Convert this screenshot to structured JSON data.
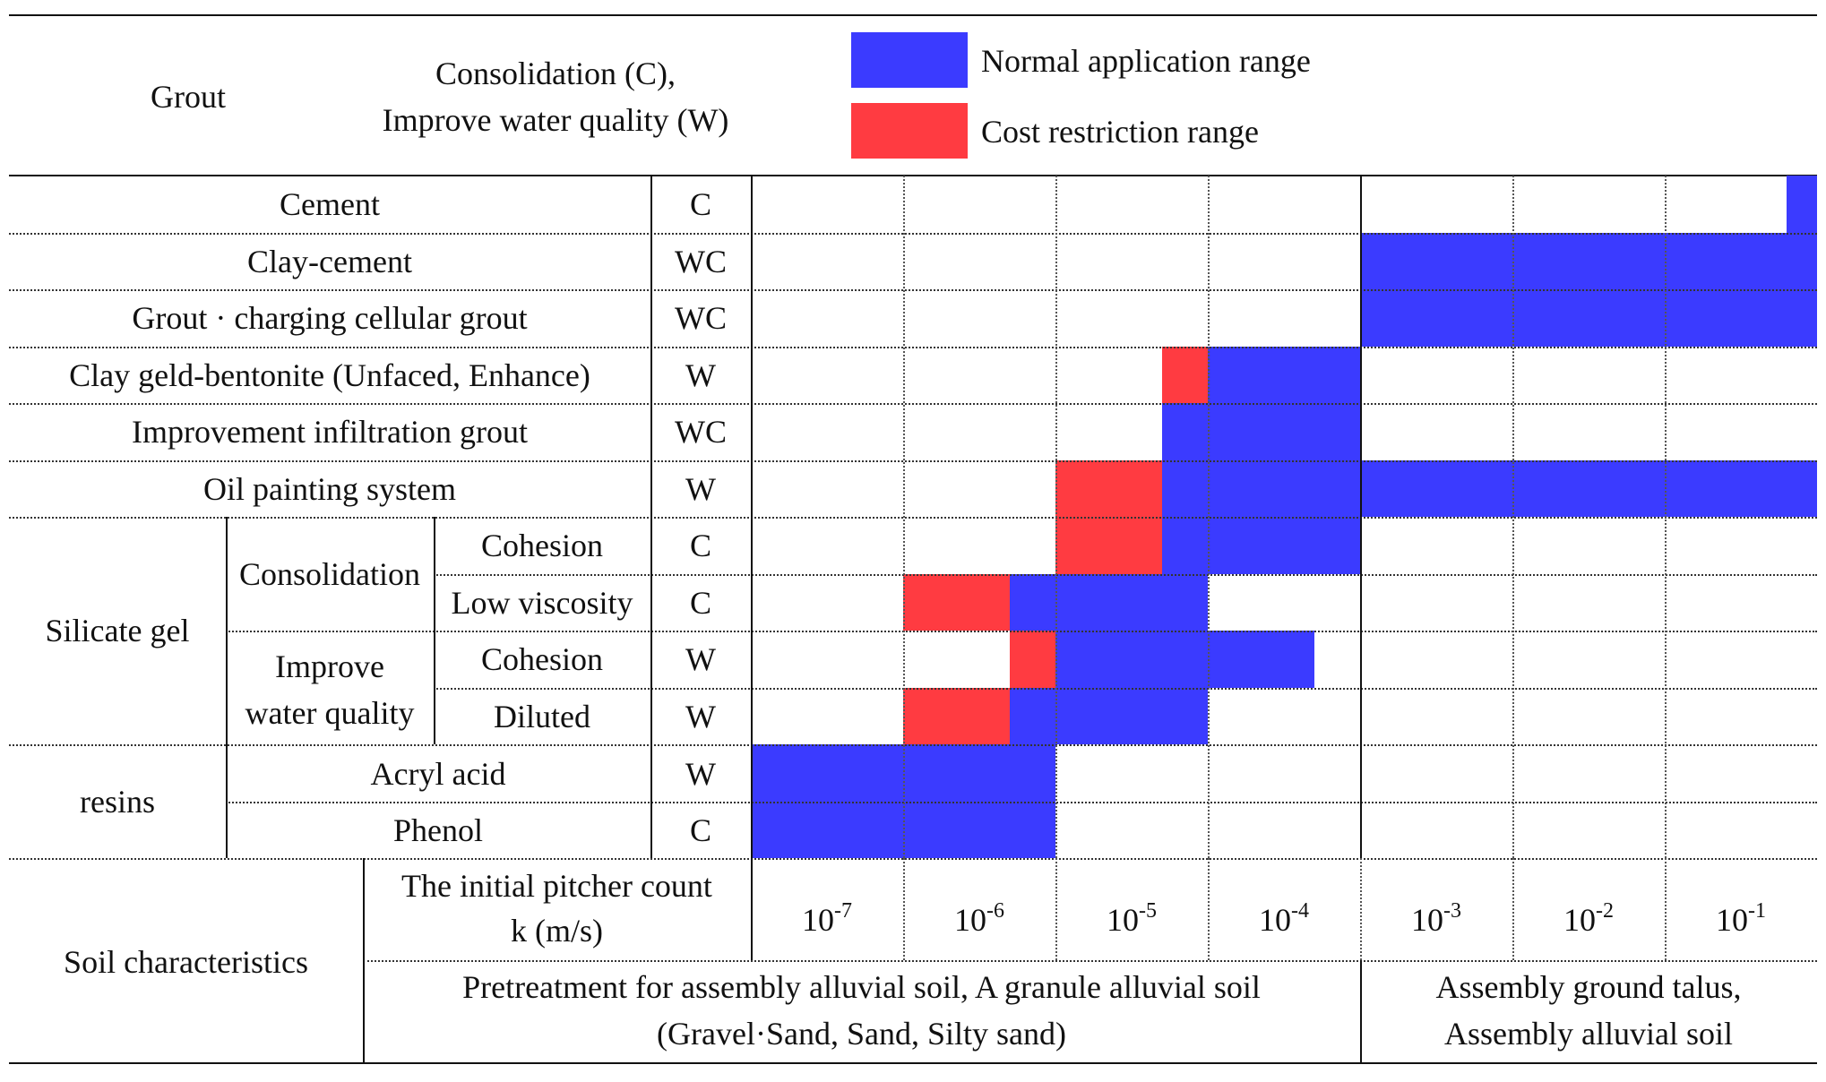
{
  "header": {
    "grout_label": "Grout",
    "purpose_line1": "Consolidation (C),",
    "purpose_line2": "Improve water quality (W)"
  },
  "legend": {
    "normal": {
      "label": "Normal application range",
      "color": "#3b3bff"
    },
    "cost": {
      "label": "Cost restriction range",
      "color": "#ff3b41"
    }
  },
  "rows": [
    {
      "name": "Cement",
      "code": "C"
    },
    {
      "name": "Clay-cement",
      "code": "WC"
    },
    {
      "name": "Grout · charging cellular grout",
      "code": "WC"
    },
    {
      "name": "Clay geld-bentonite (Unfaced, Enhance)",
      "code": "W"
    },
    {
      "name": "Improvement infiltration grout",
      "code": "WC"
    },
    {
      "name": "Oil painting system",
      "code": "W"
    },
    {
      "name": "Cohesion",
      "code": "C"
    },
    {
      "name": "Low viscosity",
      "code": "C"
    },
    {
      "name": "Cohesion",
      "code": "W"
    },
    {
      "name": "Diluted",
      "code": "W"
    },
    {
      "name": "Acryl acid",
      "code": "W"
    },
    {
      "name": "Phenol",
      "code": "C"
    }
  ],
  "groups": {
    "silicate": "Silicate gel",
    "consolidation": "Consolidation",
    "improve_line1": "Improve",
    "improve_line2": "water quality",
    "resins": "resins"
  },
  "footer": {
    "soil_characteristics": "Soil characteristics",
    "k_line1": "The initial pitcher count",
    "k_line2": "k (m/s)",
    "k_values": [
      {
        "base": "10",
        "exp": "-7"
      },
      {
        "base": "10",
        "exp": "-6"
      },
      {
        "base": "10",
        "exp": "-5"
      },
      {
        "base": "10",
        "exp": "-4"
      },
      {
        "base": "10",
        "exp": "-3"
      },
      {
        "base": "10",
        "exp": "-2"
      },
      {
        "base": "10",
        "exp": "-1"
      }
    ],
    "soil_left_line1": "Pretreatment for assembly alluvial soil, A granule alluvial soil",
    "soil_left_line2": "(Gravel·Sand, Sand, Silty sand)",
    "soil_right_line1": "Assembly ground talus,",
    "soil_right_line2": "Assembly alluvial soil"
  },
  "ranges": [
    {
      "row": 0,
      "normal": [
        6.8,
        7
      ]
    },
    {
      "row": 1,
      "normal": [
        4,
        7
      ]
    },
    {
      "row": 2,
      "normal": [
        4,
        7
      ]
    },
    {
      "row": 3,
      "cost": [
        2.7,
        3
      ],
      "normal": [
        3,
        4
      ]
    },
    {
      "row": 4,
      "normal": [
        2.7,
        4
      ]
    },
    {
      "row": 5,
      "cost": [
        2,
        2.7
      ],
      "normal": [
        2.7,
        7
      ]
    },
    {
      "row": 6,
      "cost": [
        2,
        2.7
      ],
      "normal": [
        2.7,
        4
      ]
    },
    {
      "row": 7,
      "cost": [
        1,
        1.7
      ],
      "normal": [
        1.7,
        3
      ]
    },
    {
      "row": 8,
      "cost": [
        1.7,
        2
      ],
      "normal": [
        2,
        3.7
      ]
    },
    {
      "row": 9,
      "cost": [
        1,
        1.7
      ],
      "normal": [
        1.7,
        3
      ]
    },
    {
      "row": 10,
      "normal": [
        0,
        2
      ]
    },
    {
      "row": 11,
      "normal": [
        0,
        2
      ]
    }
  ]
}
